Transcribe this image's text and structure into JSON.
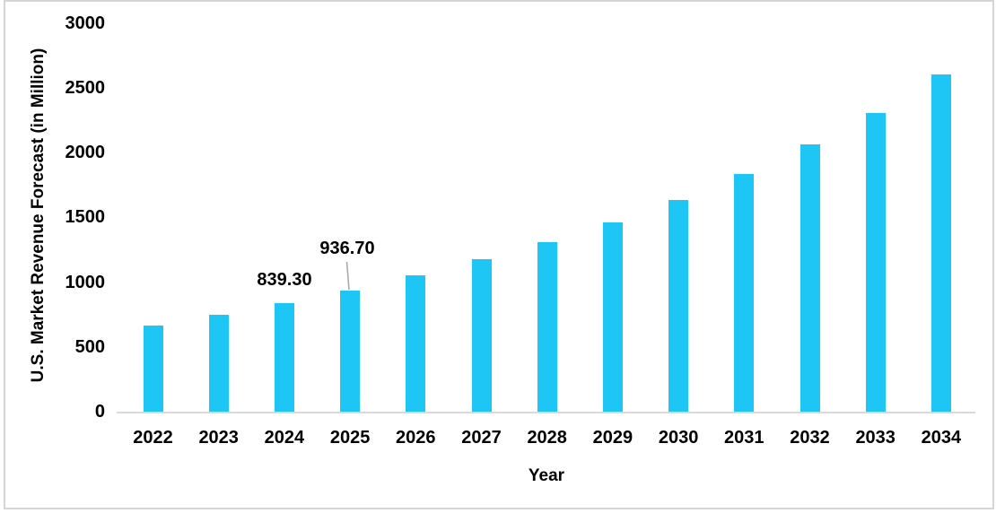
{
  "chart_data": {
    "type": "bar",
    "title": "",
    "xlabel": "Year",
    "ylabel": "U.S. Market Revenue Forecast (in Million)",
    "categories": [
      "2022",
      "2023",
      "2024",
      "2025",
      "2026",
      "2027",
      "2028",
      "2029",
      "2030",
      "2031",
      "2032",
      "2033",
      "2034"
    ],
    "values": [
      665,
      745,
      839.3,
      936.7,
      1050,
      1175,
      1310,
      1460,
      1635,
      1835,
      2060,
      2305,
      2600
    ],
    "ylim": [
      0,
      3000
    ],
    "yticks": [
      "0",
      "500",
      "1000",
      "1500",
      "2000",
      "2500",
      "3000"
    ],
    "grid": false,
    "legend": "none",
    "bar_color": "#1ec6f5",
    "axis_line_color": "#d9d9d9",
    "annotations": [
      {
        "category": "2024",
        "text": "839.30"
      },
      {
        "category": "2025",
        "text": "936.70"
      }
    ]
  }
}
